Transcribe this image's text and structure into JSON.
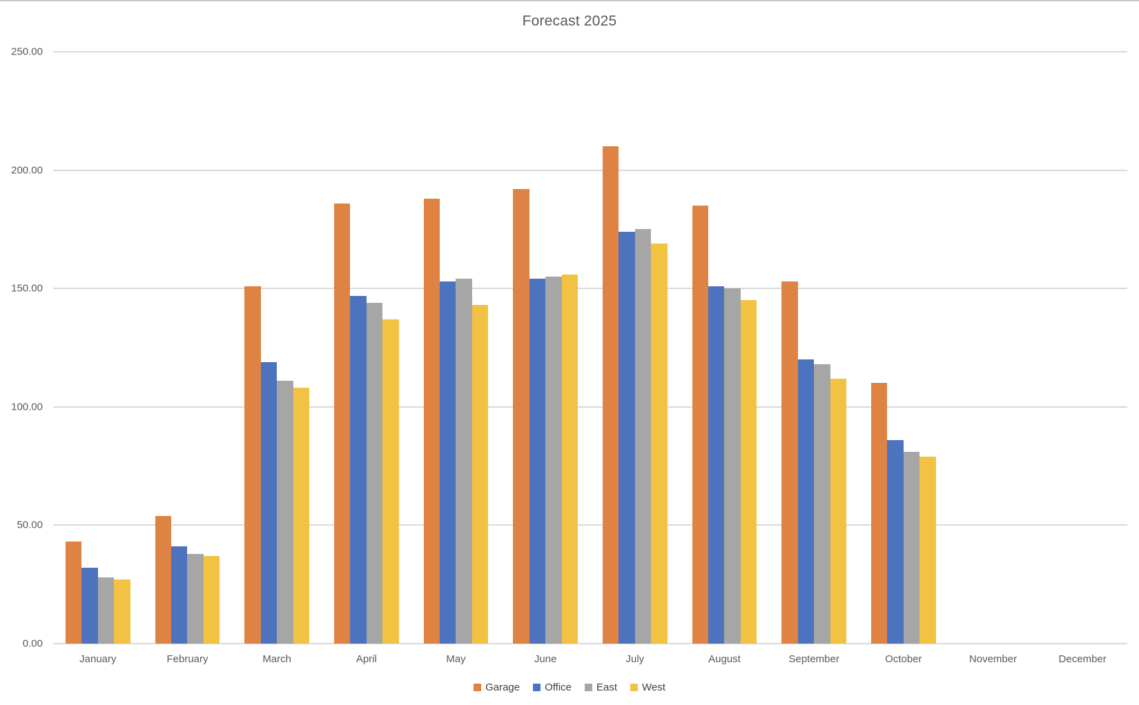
{
  "chart_data": {
    "type": "bar",
    "title": "Forecast 2025",
    "categories": [
      "January",
      "February",
      "March",
      "April",
      "May",
      "June",
      "July",
      "August",
      "September",
      "October",
      "November",
      "December"
    ],
    "series": [
      {
        "name": "Garage",
        "color": "#DE8344",
        "values": [
          43,
          54,
          151,
          186,
          188,
          192,
          210,
          185,
          153,
          110,
          0,
          0
        ]
      },
      {
        "name": "Office",
        "color": "#4D72BE",
        "values": [
          32,
          41,
          119,
          147,
          153,
          154,
          174,
          151,
          120,
          86,
          0,
          0
        ]
      },
      {
        "name": "East",
        "color": "#A6A6A6",
        "values": [
          28,
          38,
          111,
          144,
          154,
          155,
          175,
          150,
          118,
          81,
          0,
          0
        ]
      },
      {
        "name": "West",
        "color": "#F2C342",
        "values": [
          27,
          37,
          108,
          137,
          143,
          156,
          169,
          145,
          112,
          79,
          0,
          0
        ]
      }
    ],
    "ylim": [
      0,
      250
    ],
    "y_tick_step": 50,
    "y_ticks": [
      "250.00",
      "200.00",
      "150.00",
      "100.00",
      "50.00",
      "0.00"
    ],
    "grid": true,
    "legend_position": "bottom",
    "gridline_color": "#D9D9D9",
    "text_color": "#595959"
  }
}
